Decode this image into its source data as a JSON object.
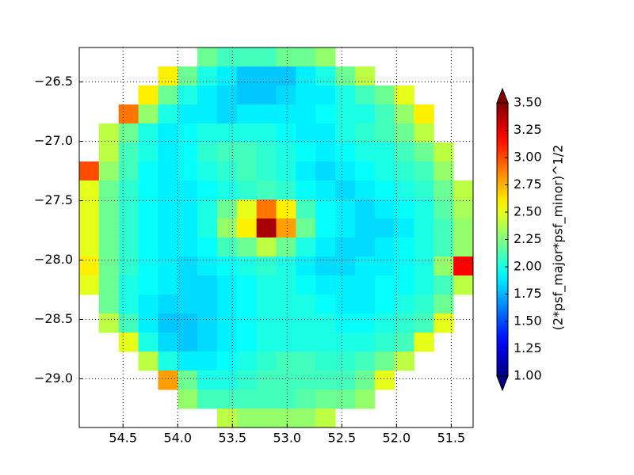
{
  "chart_data": {
    "type": "heatmap",
    "colormap": "jet",
    "values": [
      [
        null,
        null,
        null,
        null,
        null,
        null,
        2.2,
        2.1,
        2.1,
        2.1,
        2.2,
        2.2,
        2.3,
        null,
        null,
        null,
        null,
        null,
        null,
        null
      ],
      [
        null,
        null,
        null,
        null,
        2.6,
        2.2,
        2.0,
        1.9,
        1.8,
        1.8,
        1.8,
        1.9,
        2.0,
        2.2,
        2.4,
        null,
        null,
        null,
        null,
        null
      ],
      [
        null,
        null,
        null,
        2.6,
        2.2,
        2.0,
        1.9,
        1.85,
        1.8,
        1.8,
        1.85,
        1.9,
        1.9,
        2.0,
        2.1,
        2.2,
        2.5,
        null,
        null,
        null
      ],
      [
        null,
        null,
        2.9,
        2.3,
        2.0,
        1.9,
        1.9,
        1.85,
        1.9,
        1.9,
        1.9,
        1.9,
        1.95,
        2.0,
        2.0,
        2.1,
        2.3,
        2.6,
        null,
        null
      ],
      [
        null,
        2.4,
        2.2,
        2.0,
        1.9,
        1.95,
        2.0,
        2.0,
        2.0,
        2.0,
        1.95,
        1.9,
        1.9,
        2.0,
        2.05,
        2.1,
        2.2,
        2.4,
        null,
        null
      ],
      [
        null,
        2.4,
        2.1,
        2.0,
        1.9,
        1.95,
        2.05,
        2.1,
        2.1,
        2.05,
        2.0,
        1.95,
        1.9,
        1.95,
        2.0,
        2.0,
        2.1,
        2.2,
        2.4,
        null
      ],
      [
        3.0,
        2.3,
        2.1,
        1.95,
        1.9,
        1.95,
        2.0,
        2.05,
        2.1,
        2.05,
        2.0,
        1.9,
        1.85,
        1.9,
        1.95,
        2.0,
        2.05,
        2.1,
        2.3,
        null
      ],
      [
        2.5,
        2.2,
        2.05,
        1.95,
        1.9,
        1.9,
        1.95,
        2.0,
        2.05,
        2.1,
        2.05,
        1.95,
        1.9,
        1.85,
        1.9,
        1.95,
        2.0,
        2.05,
        2.2,
        2.4
      ],
      [
        2.5,
        2.2,
        2.05,
        1.95,
        1.9,
        1.9,
        2.0,
        2.2,
        2.5,
        2.9,
        2.6,
        2.1,
        1.95,
        1.9,
        1.85,
        1.9,
        1.95,
        2.0,
        2.15,
        2.35
      ],
      [
        2.5,
        2.2,
        2.05,
        1.95,
        1.9,
        1.9,
        2.0,
        2.3,
        2.6,
        3.4,
        2.8,
        2.2,
        1.95,
        1.9,
        1.85,
        1.85,
        1.9,
        2.0,
        2.1,
        2.3
      ],
      [
        2.5,
        2.2,
        2.05,
        1.95,
        1.9,
        1.9,
        1.95,
        2.1,
        2.2,
        2.4,
        2.2,
        2.0,
        1.9,
        1.85,
        1.85,
        1.9,
        1.95,
        2.0,
        2.1,
        2.3
      ],
      [
        2.6,
        2.2,
        2.05,
        1.95,
        1.9,
        1.85,
        1.9,
        1.95,
        2.0,
        2.05,
        2.0,
        1.9,
        1.85,
        1.85,
        1.9,
        1.9,
        1.95,
        2.0,
        2.3,
        3.2
      ],
      [
        2.5,
        2.2,
        2.0,
        1.95,
        1.9,
        1.85,
        1.85,
        1.9,
        1.95,
        2.0,
        2.0,
        1.95,
        1.9,
        1.9,
        1.9,
        1.95,
        1.95,
        2.0,
        2.1,
        2.4
      ],
      [
        null,
        2.2,
        2.0,
        1.9,
        1.85,
        1.85,
        1.85,
        1.9,
        1.95,
        2.0,
        2.0,
        2.0,
        1.95,
        1.9,
        1.9,
        1.95,
        2.0,
        2.05,
        2.2,
        null
      ],
      [
        null,
        2.4,
        2.1,
        1.9,
        1.8,
        1.8,
        1.85,
        1.9,
        1.95,
        2.0,
        2.0,
        2.0,
        2.0,
        1.95,
        1.95,
        2.0,
        2.05,
        2.1,
        2.5,
        null
      ],
      [
        null,
        null,
        2.5,
        2.0,
        1.85,
        1.8,
        1.85,
        1.9,
        1.95,
        2.0,
        2.0,
        2.0,
        2.0,
        2.0,
        2.0,
        2.05,
        2.1,
        2.5,
        null,
        null
      ],
      [
        null,
        null,
        null,
        2.4,
        2.0,
        1.9,
        1.9,
        1.95,
        2.0,
        2.05,
        2.1,
        2.1,
        2.05,
        2.05,
        2.1,
        2.2,
        2.4,
        null,
        null,
        null
      ],
      [
        null,
        null,
        null,
        null,
        2.8,
        2.2,
        2.0,
        2.0,
        2.05,
        2.1,
        2.1,
        2.1,
        2.1,
        2.1,
        2.2,
        2.5,
        null,
        null,
        null,
        null
      ],
      [
        null,
        null,
        null,
        null,
        null,
        2.3,
        2.1,
        2.1,
        2.1,
        2.1,
        2.1,
        2.15,
        2.2,
        2.2,
        2.3,
        null,
        null,
        null,
        null,
        null
      ],
      [
        null,
        null,
        null,
        null,
        null,
        null,
        null,
        2.4,
        2.3,
        2.3,
        2.3,
        2.3,
        2.4,
        null,
        null,
        null,
        null,
        null,
        null,
        null
      ]
    ],
    "xlim": [
      54.9,
      51.3
    ],
    "ylim": [
      -29.41,
      -26.21
    ],
    "xticks": [
      54.5,
      {
        "value": 54,
        "label": "54.0"
      },
      53.5,
      {
        "value": 53,
        "label": "53.0"
      },
      52.5,
      {
        "value": 52,
        "label": "52.0"
      },
      51.5
    ],
    "yticks": [
      {
        "value": -26.5,
        "label": "−26.5"
      },
      {
        "value": -27,
        "label": "−27.0"
      },
      {
        "value": -27.5,
        "label": "−27.5"
      },
      {
        "value": -28,
        "label": "−28.0"
      },
      {
        "value": -28.5,
        "label": "−28.5"
      },
      {
        "value": -29,
        "label": "−29.0"
      }
    ],
    "grid": true,
    "colorbar": {
      "label": "(2*psf_major*psf_minor)^1/2",
      "lim": [
        1,
        3.5
      ],
      "ticks": [
        {
          "value": 1,
          "label": "1.00"
        },
        {
          "value": 1.25,
          "label": "1.25"
        },
        {
          "value": 1.5,
          "label": "1.50"
        },
        {
          "value": 1.75,
          "label": "1.75"
        },
        {
          "value": 2,
          "label": "2.00"
        },
        {
          "value": 2.25,
          "label": "2.25"
        },
        {
          "value": 2.5,
          "label": "2.50"
        },
        {
          "value": 2.75,
          "label": "2.75"
        },
        {
          "value": 3,
          "label": "3.00"
        },
        {
          "value": 3.25,
          "label": "3.25"
        },
        {
          "value": 3.5,
          "label": "3.50"
        }
      ]
    }
  }
}
